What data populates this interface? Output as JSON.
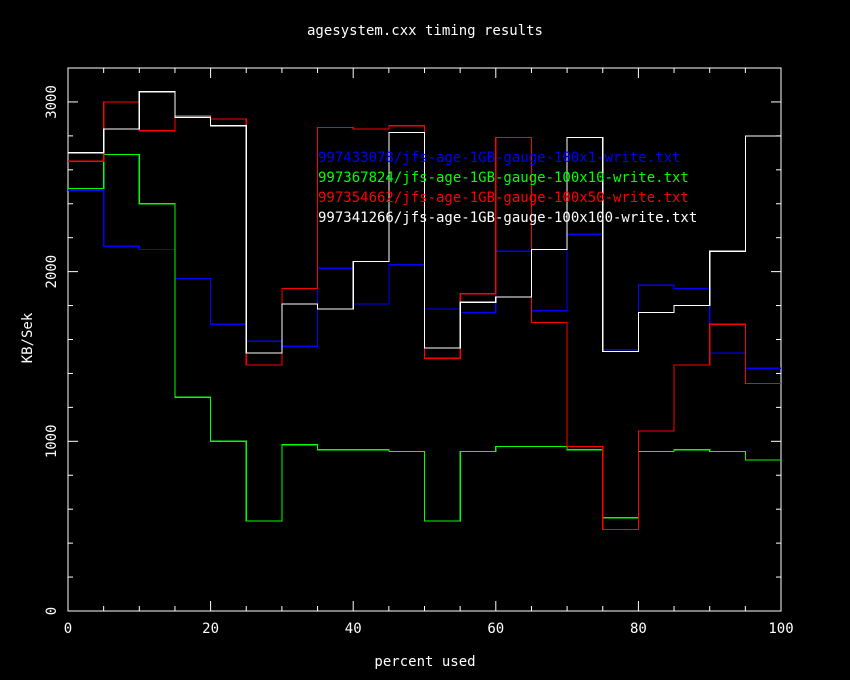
{
  "chart_data": {
    "type": "line",
    "step": true,
    "title": "agesystem.cxx timing results",
    "xlabel": "percent used",
    "ylabel": "KB/Sek",
    "xlim": [
      0,
      100
    ],
    "ylim": [
      0,
      3200
    ],
    "x_ticks": [
      0,
      20,
      40,
      60,
      80,
      100
    ],
    "y_ticks": [
      0,
      1000,
      2000,
      3000
    ],
    "x_edges": [
      0,
      5,
      10,
      15,
      20,
      25,
      30,
      35,
      40,
      45,
      50,
      55,
      60,
      65,
      70,
      75,
      80,
      85,
      90,
      95,
      100
    ],
    "legend_position": "upper-middle-right",
    "background": "#000000",
    "axis_color": "#ffffff",
    "series": [
      {
        "name": "997433078/jfs-age-1GB-gauge-100x1-write.txt",
        "color": "#0000ff",
        "values": [
          2480,
          2150,
          2130,
          1960,
          1690,
          1590,
          1560,
          2020,
          1810,
          2040,
          1780,
          1760,
          2120,
          1770,
          2220,
          1540,
          1920,
          1900,
          1520,
          1430
        ]
      },
      {
        "name": "997367824/jfs-age-1GB-gauge-100x10-write.txt",
        "color": "#00ff00",
        "values": [
          2490,
          2690,
          2400,
          1260,
          1000,
          530,
          980,
          950,
          950,
          940,
          530,
          940,
          970,
          970,
          950,
          550,
          940,
          950,
          940,
          890
        ]
      },
      {
        "name": "997354662/jfs-age-1GB-gauge-100x50-write.txt",
        "color": "#ff0000",
        "values": [
          2650,
          3000,
          2830,
          2920,
          2900,
          1450,
          1900,
          2850,
          2840,
          2860,
          1490,
          1870,
          2790,
          1700,
          970,
          480,
          1060,
          1450,
          1690,
          1340
        ]
      },
      {
        "name": "997341266/jfs-age-1GB-gauge-100x100-write.txt",
        "color": "#ffffff",
        "values": [
          2700,
          2840,
          3060,
          2910,
          2860,
          1520,
          1810,
          1780,
          2060,
          2820,
          1550,
          1820,
          1850,
          2130,
          2790,
          1530,
          1760,
          1800,
          2120,
          2800
        ]
      }
    ]
  }
}
